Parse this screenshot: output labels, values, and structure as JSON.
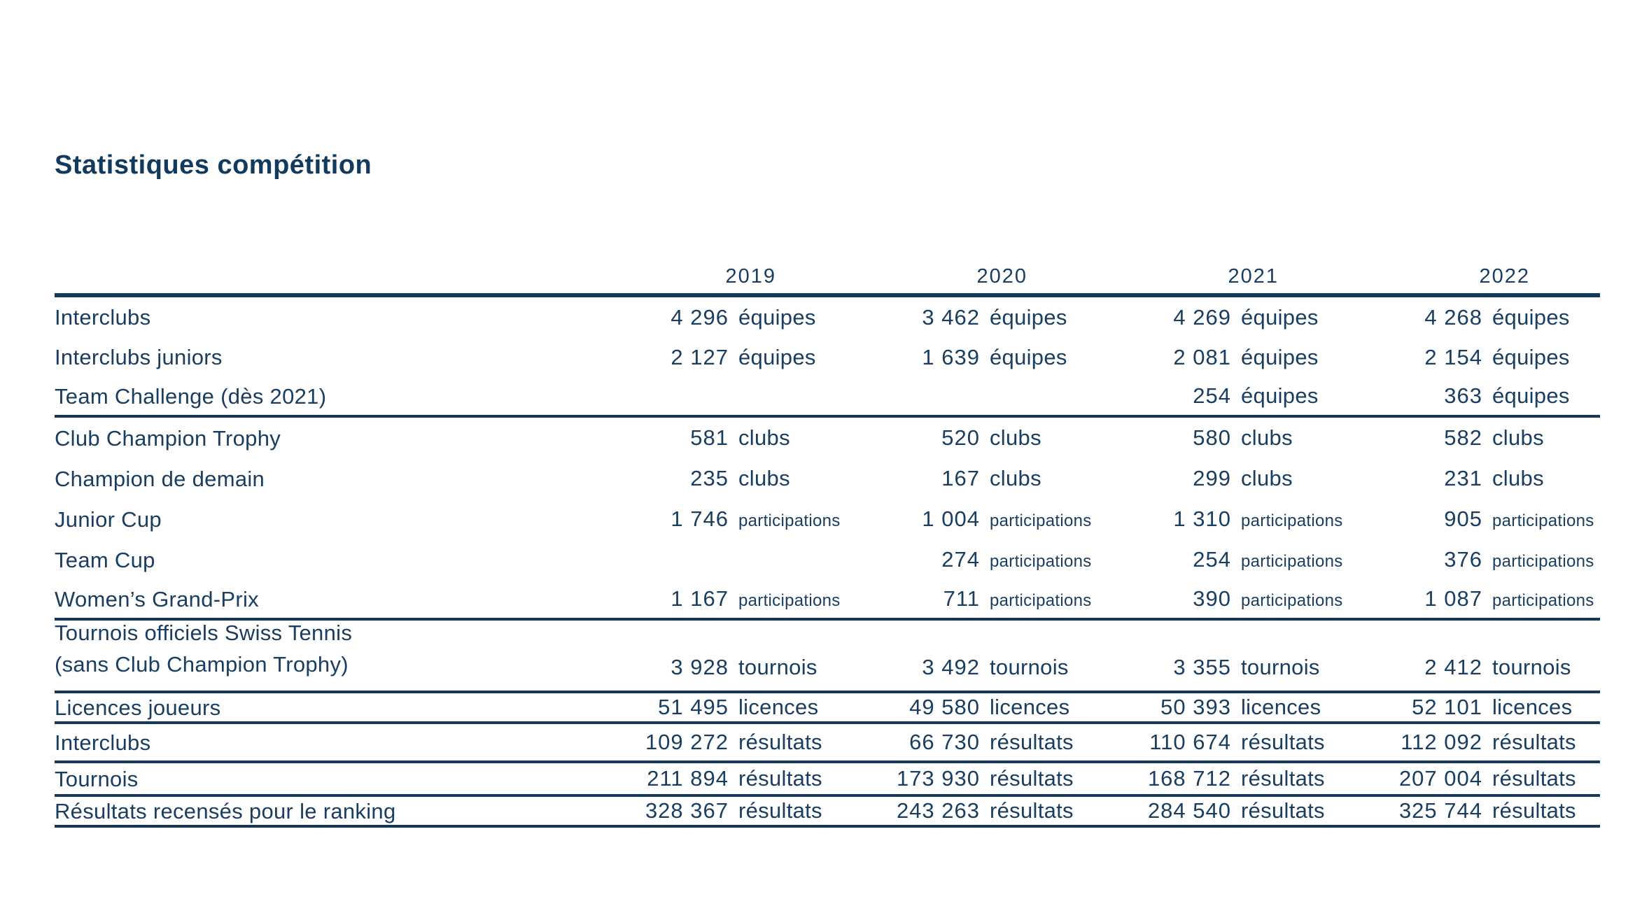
{
  "title": "Statistiques compétition",
  "colors": {
    "text": "#1a3e60",
    "title": "#123a5e",
    "rule": "#14375c",
    "background": "#ffffff"
  },
  "table": {
    "years": [
      "2019",
      "2020",
      "2021",
      "2022"
    ],
    "rows": [
      {
        "label": "Interclubs",
        "cells": [
          {
            "value": "4 296",
            "unit": "équipes"
          },
          {
            "value": "3 462",
            "unit": "équipes"
          },
          {
            "value": "4 269",
            "unit": "équipes"
          },
          {
            "value": "4 268",
            "unit": "équipes"
          }
        ],
        "divider_below": false
      },
      {
        "label": "Interclubs juniors",
        "cells": [
          {
            "value": "2 127",
            "unit": "équipes"
          },
          {
            "value": "1 639",
            "unit": "équipes"
          },
          {
            "value": "2 081",
            "unit": "équipes"
          },
          {
            "value": "2 154",
            "unit": "équipes"
          }
        ],
        "divider_below": false
      },
      {
        "label": "Team Challenge (dès 2021)",
        "cells": [
          {
            "value": "",
            "unit": ""
          },
          {
            "value": "",
            "unit": ""
          },
          {
            "value": "254",
            "unit": "équipes"
          },
          {
            "value": "363",
            "unit": "équipes"
          }
        ],
        "divider_below": true
      },
      {
        "label": "Club Champion Trophy",
        "cells": [
          {
            "value": "581",
            "unit": "clubs"
          },
          {
            "value": "520",
            "unit": "clubs"
          },
          {
            "value": "580",
            "unit": "clubs"
          },
          {
            "value": "582",
            "unit": "clubs"
          }
        ],
        "divider_below": false
      },
      {
        "label": "Champion de demain",
        "cells": [
          {
            "value": "235",
            "unit": "clubs"
          },
          {
            "value": "167",
            "unit": "clubs"
          },
          {
            "value": "299",
            "unit": "clubs"
          },
          {
            "value": "231",
            "unit": "clubs"
          }
        ],
        "divider_below": false
      },
      {
        "label": "Junior Cup",
        "cells": [
          {
            "value": "1 746",
            "unit": "participations",
            "small_unit": true
          },
          {
            "value": "1 004",
            "unit": "participations",
            "small_unit": true
          },
          {
            "value": "1 310",
            "unit": "participations",
            "small_unit": true
          },
          {
            "value": "905",
            "unit": "participations",
            "small_unit": true
          }
        ],
        "divider_below": false
      },
      {
        "label": "Team Cup",
        "cells": [
          {
            "value": "",
            "unit": ""
          },
          {
            "value": "274",
            "unit": "participations",
            "small_unit": true
          },
          {
            "value": "254",
            "unit": "participations",
            "small_unit": true
          },
          {
            "value": "376",
            "unit": "participations",
            "small_unit": true
          }
        ],
        "divider_below": false
      },
      {
        "label": "Women’s Grand-Prix",
        "cells": [
          {
            "value": "1 167",
            "unit": "participations",
            "small_unit": true
          },
          {
            "value": "711",
            "unit": "participations",
            "small_unit": true
          },
          {
            "value": "390",
            "unit": "participations",
            "small_unit": true
          },
          {
            "value": "1 087",
            "unit": "participations",
            "small_unit": true
          }
        ],
        "divider_below": true
      },
      {
        "label": "Tournois officiels Swiss Tennis",
        "label_line2": "(sans Club Champion Trophy)",
        "cells": [
          {
            "value": "3 928",
            "unit": "tournois"
          },
          {
            "value": "3 492",
            "unit": "tournois"
          },
          {
            "value": "3 355",
            "unit": "tournois"
          },
          {
            "value": "2 412",
            "unit": "tournois"
          }
        ],
        "divider_below": true
      },
      {
        "label": "Licences joueurs",
        "cells": [
          {
            "value": "51 495",
            "unit": "licences"
          },
          {
            "value": "49 580",
            "unit": "licences"
          },
          {
            "value": "50 393",
            "unit": "licences"
          },
          {
            "value": "52 101",
            "unit": "licences"
          }
        ],
        "divider_below": true
      },
      {
        "label": "Interclubs",
        "cells": [
          {
            "value": "109 272",
            "unit": "résultats"
          },
          {
            "value": "66 730",
            "unit": "résultats"
          },
          {
            "value": "110 674",
            "unit": "résultats"
          },
          {
            "value": "112 092",
            "unit": "résultats"
          }
        ],
        "divider_below": true
      },
      {
        "label": "Tournois",
        "cells": [
          {
            "value": "211 894",
            "unit": "résultats"
          },
          {
            "value": "173 930",
            "unit": "résultats"
          },
          {
            "value": "168 712",
            "unit": "résultats"
          },
          {
            "value": "207 004",
            "unit": "résultats"
          }
        ],
        "divider_below": true
      },
      {
        "label": "Résultats recensés pour le ranking",
        "cells": [
          {
            "value": "328 367",
            "unit": "résultats"
          },
          {
            "value": "243 263",
            "unit": "résultats"
          },
          {
            "value": "284 540",
            "unit": "résultats"
          },
          {
            "value": "325 744",
            "unit": "résultats"
          }
        ],
        "divider_below": true
      }
    ]
  }
}
